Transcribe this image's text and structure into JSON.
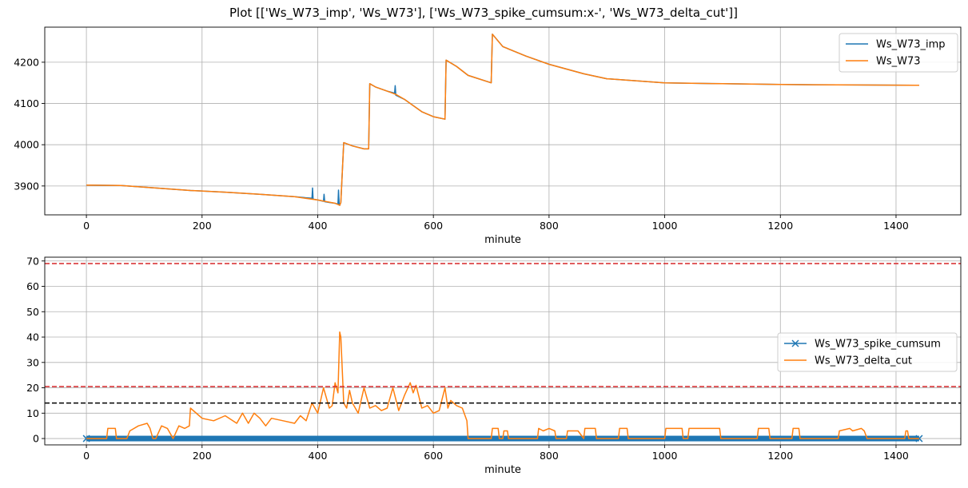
{
  "figure": {
    "title": "Plot [['Ws_W73_imp', 'Ws_W73'], ['Ws_W73_spike_cumsum:x-', 'Ws_W73_delta_cut']]"
  },
  "chart_data": [
    {
      "type": "line",
      "xlabel": "minute",
      "ylabel": "",
      "xlim": [
        -72,
        1512
      ],
      "ylim": [
        3830,
        4285
      ],
      "xticks": [
        0,
        200,
        400,
        600,
        800,
        1000,
        1200,
        1400
      ],
      "yticks": [
        3900,
        4000,
        4100,
        4200
      ],
      "grid": true,
      "legend_position": "upper-right",
      "series": [
        {
          "name": "Ws_W73_imp",
          "color": "#1f77b4",
          "x": [
            0,
            60,
            120,
            180,
            240,
            300,
            360,
            390,
            391,
            392,
            400,
            410,
            411,
            412,
            420,
            430,
            435,
            436,
            437,
            438,
            440,
            445,
            460,
            480,
            488,
            490,
            500,
            520,
            533,
            534,
            535,
            550,
            580,
            600,
            620,
            622,
            640,
            660,
            700,
            702,
            720,
            760,
            800,
            860,
            900,
            1000,
            1100,
            1200,
            1300,
            1440
          ],
          "y": [
            3902,
            3901,
            3895,
            3889,
            3885,
            3880,
            3874,
            3870,
            3895,
            3868,
            3866,
            3863,
            3880,
            3862,
            3860,
            3858,
            3856,
            3890,
            3855,
            3853,
            3860,
            4005,
            3997,
            3990,
            3990,
            4148,
            4140,
            4130,
            4125,
            4143,
            4120,
            4110,
            4080,
            4068,
            4062,
            4205,
            4190,
            4168,
            4150,
            4268,
            4238,
            4215,
            4195,
            4172,
            4160,
            4150,
            4148,
            4146,
            4145,
            4144
          ]
        },
        {
          "name": "Ws_W73",
          "color": "#ff7f0e",
          "x": [
            0,
            60,
            120,
            180,
            240,
            300,
            360,
            400,
            430,
            438,
            440,
            445,
            460,
            480,
            488,
            490,
            500,
            520,
            535,
            550,
            580,
            600,
            620,
            622,
            640,
            660,
            700,
            702,
            720,
            760,
            800,
            860,
            900,
            1000,
            1100,
            1200,
            1300,
            1440
          ],
          "y": [
            3902,
            3901,
            3895,
            3889,
            3885,
            3880,
            3874,
            3866,
            3858,
            3853,
            3860,
            4005,
            3997,
            3990,
            3990,
            4148,
            4140,
            4130,
            4122,
            4110,
            4080,
            4068,
            4062,
            4205,
            4190,
            4168,
            4150,
            4268,
            4238,
            4215,
            4195,
            4172,
            4160,
            4150,
            4148,
            4146,
            4145,
            4144
          ]
        }
      ]
    },
    {
      "type": "line",
      "xlabel": "minute",
      "ylabel": "",
      "xlim": [
        -72,
        1512
      ],
      "ylim": [
        -2.5,
        71.5
      ],
      "xticks": [
        0,
        200,
        400,
        600,
        800,
        1000,
        1200,
        1400
      ],
      "yticks": [
        0,
        10,
        20,
        30,
        40,
        50,
        60,
        70
      ],
      "grid": true,
      "legend_position": "center-right",
      "hlines": [
        {
          "y": 69,
          "color": "#d62728",
          "style": "dashed"
        },
        {
          "y": 20.5,
          "color": "#d62728",
          "style": "dashed"
        },
        {
          "y": 14,
          "color": "#000000",
          "style": "dashed"
        }
      ],
      "series": [
        {
          "name": "Ws_W73_spike_cumsum",
          "color": "#1f77b4",
          "marker": "x",
          "x_range": [
            0,
            1440
          ],
          "value": 0
        },
        {
          "name": "Ws_W73_delta_cut",
          "color": "#ff7f0e",
          "x": [
            0,
            35,
            37,
            50,
            52,
            70,
            75,
            90,
            105,
            110,
            115,
            120,
            130,
            140,
            150,
            160,
            170,
            178,
            180,
            195,
            200,
            220,
            240,
            260,
            270,
            280,
            290,
            300,
            310,
            320,
            340,
            360,
            370,
            380,
            390,
            400,
            410,
            420,
            425,
            430,
            435,
            438,
            440,
            445,
            450,
            455,
            460,
            470,
            480,
            490,
            500,
            510,
            520,
            530,
            540,
            550,
            560,
            565,
            570,
            580,
            590,
            600,
            610,
            620,
            625,
            630,
            640,
            650,
            658,
            660,
            700,
            702,
            712,
            714,
            720,
            722,
            728,
            730,
            760,
            780,
            782,
            790,
            800,
            810,
            812,
            830,
            832,
            850,
            860,
            862,
            880,
            882,
            900,
            920,
            922,
            935,
            937,
            1000,
            1002,
            1010,
            1030,
            1032,
            1040,
            1042,
            1095,
            1097,
            1105,
            1160,
            1162,
            1180,
            1182,
            1220,
            1222,
            1232,
            1234,
            1300,
            1302,
            1320,
            1325,
            1340,
            1345,
            1350,
            1352,
            1415,
            1417,
            1420,
            1422,
            1440
          ],
          "y": [
            0,
            0,
            4,
            4,
            0,
            0,
            3,
            5,
            6,
            4,
            0,
            0,
            5,
            4,
            0,
            5,
            4,
            5,
            12,
            9,
            8,
            7,
            9,
            6,
            10,
            6,
            10,
            8,
            5,
            8,
            7,
            6,
            9,
            7,
            14,
            10,
            20,
            12,
            13,
            22,
            18,
            42,
            40,
            14,
            12,
            19,
            14,
            10,
            20,
            12,
            13,
            11,
            12,
            20,
            11,
            17,
            22,
            18,
            21,
            12,
            13,
            10,
            11,
            20,
            12,
            15,
            13,
            12,
            7,
            0,
            0,
            4,
            4,
            0,
            0,
            3,
            3,
            0,
            0,
            0,
            4,
            3,
            4,
            3,
            0,
            0,
            3,
            3,
            0,
            4,
            4,
            0,
            0,
            0,
            4,
            4,
            0,
            0,
            4,
            4,
            4,
            0,
            0,
            4,
            4,
            0,
            0,
            0,
            4,
            4,
            0,
            0,
            4,
            4,
            0,
            0,
            3,
            4,
            3,
            4,
            3,
            0,
            0,
            0,
            3,
            3,
            0,
            0
          ]
        }
      ]
    }
  ]
}
